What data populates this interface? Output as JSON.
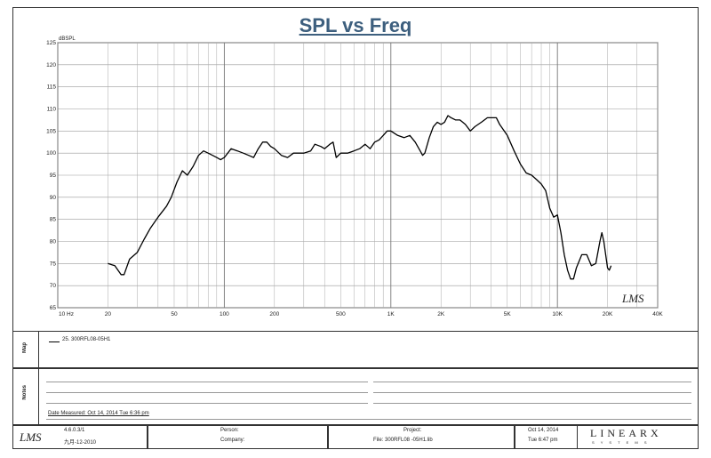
{
  "chart_data": {
    "type": "line",
    "title": "SPL vs Freq",
    "ylabel": "dBSPL",
    "xlabel": "",
    "xscale": "log",
    "xlim": [
      10,
      40000
    ],
    "ylim": [
      65,
      125
    ],
    "grid": true,
    "y_ticks": [
      "65",
      "70",
      "75",
      "80",
      "85",
      "90",
      "95",
      "100",
      "105",
      "110",
      "115",
      "120",
      "125"
    ],
    "x_ticks": [
      {
        "v": 10,
        "label": "10 Hz"
      },
      {
        "v": 20,
        "label": "20"
      },
      {
        "v": 50,
        "label": "50"
      },
      {
        "v": 100,
        "label": "100"
      },
      {
        "v": 200,
        "label": "200"
      },
      {
        "v": 500,
        "label": "500"
      },
      {
        "v": 1000,
        "label": "1K"
      },
      {
        "v": 2000,
        "label": "2K"
      },
      {
        "v": 5000,
        "label": "5K"
      },
      {
        "v": 10000,
        "label": "10K"
      },
      {
        "v": 20000,
        "label": "20K"
      },
      {
        "v": 40000,
        "label": "40K"
      }
    ],
    "series": [
      {
        "name": "25. 300RFL08-05H1",
        "color": "#000000",
        "points": [
          [
            20,
            75
          ],
          [
            22,
            74.5
          ],
          [
            24,
            72.5
          ],
          [
            25,
            72.5
          ],
          [
            27,
            76
          ],
          [
            30,
            77.5
          ],
          [
            33,
            80.5
          ],
          [
            36,
            83
          ],
          [
            40,
            85.5
          ],
          [
            45,
            88
          ],
          [
            48,
            90
          ],
          [
            52,
            93.5
          ],
          [
            56,
            96
          ],
          [
            60,
            95
          ],
          [
            65,
            97
          ],
          [
            70,
            99.5
          ],
          [
            75,
            100.5
          ],
          [
            80,
            100
          ],
          [
            85,
            99.5
          ],
          [
            90,
            99
          ],
          [
            95,
            98.5
          ],
          [
            100,
            99
          ],
          [
            110,
            101
          ],
          [
            120,
            100.5
          ],
          [
            130,
            100
          ],
          [
            140,
            99.5
          ],
          [
            150,
            99
          ],
          [
            160,
            101
          ],
          [
            170,
            102.5
          ],
          [
            180,
            102.5
          ],
          [
            190,
            101.5
          ],
          [
            200,
            101
          ],
          [
            220,
            99.5
          ],
          [
            240,
            99
          ],
          [
            260,
            100
          ],
          [
            280,
            100
          ],
          [
            300,
            100
          ],
          [
            330,
            100.5
          ],
          [
            350,
            102
          ],
          [
            380,
            101.5
          ],
          [
            400,
            101
          ],
          [
            430,
            102
          ],
          [
            450,
            102.5
          ],
          [
            470,
            99
          ],
          [
            500,
            100
          ],
          [
            550,
            100
          ],
          [
            600,
            100.5
          ],
          [
            650,
            101
          ],
          [
            700,
            102
          ],
          [
            750,
            101
          ],
          [
            800,
            102.5
          ],
          [
            850,
            103
          ],
          [
            900,
            104
          ],
          [
            950,
            105
          ],
          [
            1000,
            105
          ],
          [
            1100,
            104
          ],
          [
            1200,
            103.5
          ],
          [
            1300,
            104
          ],
          [
            1400,
            102.5
          ],
          [
            1500,
            100.5
          ],
          [
            1550,
            99.5
          ],
          [
            1600,
            100
          ],
          [
            1700,
            103.5
          ],
          [
            1800,
            106
          ],
          [
            1900,
            107
          ],
          [
            2000,
            106.5
          ],
          [
            2100,
            107
          ],
          [
            2200,
            108.5
          ],
          [
            2300,
            108
          ],
          [
            2450,
            107.5
          ],
          [
            2600,
            107.5
          ],
          [
            2700,
            107
          ],
          [
            2800,
            106.5
          ],
          [
            3000,
            105
          ],
          [
            3200,
            106
          ],
          [
            3500,
            107
          ],
          [
            3800,
            108
          ],
          [
            4000,
            108
          ],
          [
            4300,
            108
          ],
          [
            4500,
            106.5
          ],
          [
            5000,
            104
          ],
          [
            5500,
            100.5
          ],
          [
            6000,
            97.5
          ],
          [
            6500,
            95.5
          ],
          [
            7000,
            95
          ],
          [
            7500,
            94
          ],
          [
            8000,
            93
          ],
          [
            8500,
            91.5
          ],
          [
            9000,
            87.5
          ],
          [
            9500,
            85.5
          ],
          [
            10000,
            86
          ],
          [
            10500,
            82
          ],
          [
            11000,
            77
          ],
          [
            11500,
            73.5
          ],
          [
            12000,
            71.5
          ],
          [
            12500,
            71.5
          ],
          [
            13000,
            74
          ],
          [
            14000,
            77
          ],
          [
            15000,
            77
          ],
          [
            16000,
            74.5
          ],
          [
            17000,
            75
          ],
          [
            18000,
            80
          ],
          [
            18500,
            82
          ],
          [
            19000,
            80
          ],
          [
            20000,
            74
          ],
          [
            20500,
            73.5
          ],
          [
            21000,
            74.5
          ]
        ]
      }
    ],
    "legend": "inside-map-panel"
  },
  "watermark": "LMS",
  "panels": {
    "map_label": "Map",
    "notes_label": "Notes",
    "legend_entry": "25. 300RFL08-05H1",
    "date_measured": "Date Measured: Oct 14, 2014  Tue  6:36 pm"
  },
  "footer": {
    "logo": "LMS",
    "version": "4.6.0.3/1",
    "build": "九月-12-2010",
    "person_label": "Person:",
    "company_label": "Company:",
    "project_label": "Project:",
    "file_label": "File: 300RFL08 -05H1.lib",
    "date": "Oct 14, 2014",
    "time": "Tue  6:47 pm",
    "brand": "LINEARX",
    "brand_sub": "S Y S T E M S"
  }
}
